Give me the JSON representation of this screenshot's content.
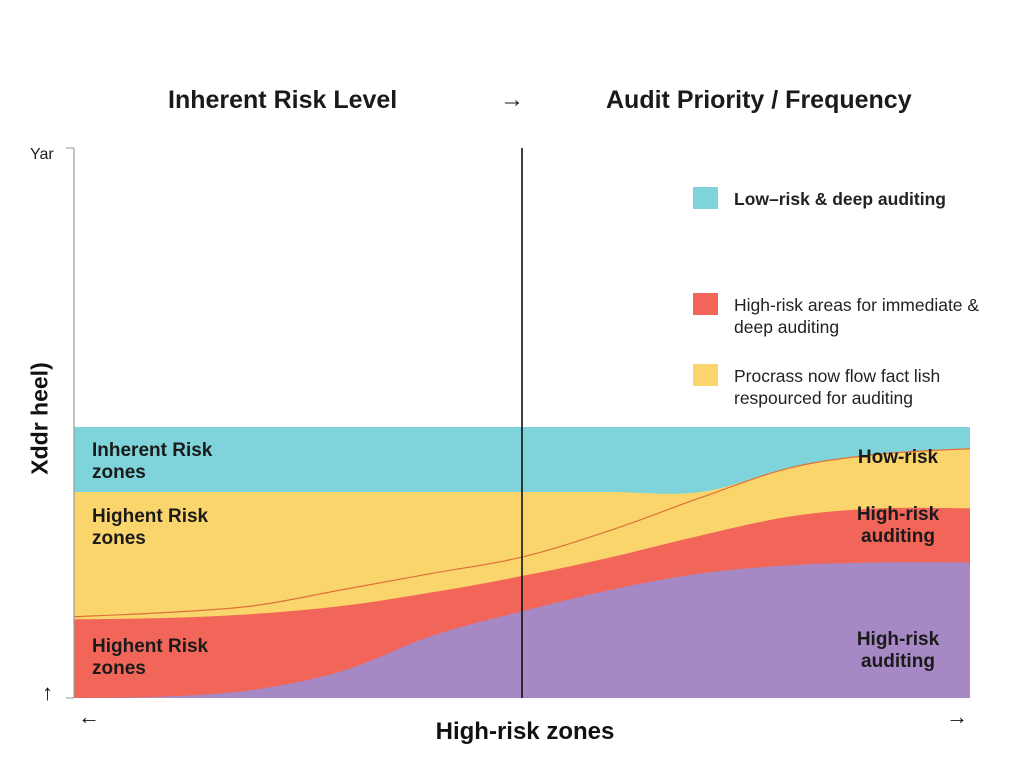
{
  "headings": {
    "left": "Inherent Risk Level",
    "arrow": "→",
    "right": "Audit Priority / Frequency"
  },
  "chart_data": {
    "type": "area",
    "title": "",
    "ylabel": "Xddr heel)",
    "y_top_label": "Yar",
    "xlabel": "High-risk zones",
    "xlim": [
      0,
      100
    ],
    "ylim": [
      0,
      100
    ],
    "axis_arrows": {
      "up": "↑",
      "left": "←",
      "right": "→"
    },
    "divider_x": 50,
    "x": [
      0,
      10,
      20,
      30,
      40,
      50,
      60,
      70,
      80,
      90,
      100
    ],
    "series": [
      {
        "key": "purple",
        "color": "#a689c4",
        "values": [
          0,
          0.5,
          3,
          10,
          23,
          32,
          40,
          46,
          49,
          50,
          50
        ]
      },
      {
        "key": "red",
        "color": "#f26659",
        "values": [
          29,
          29.5,
          31,
          34,
          39,
          45,
          52,
          60,
          67,
          70,
          70
        ]
      },
      {
        "key": "yellow",
        "color": "#fad56b",
        "values": [
          30,
          31.5,
          34,
          40,
          46,
          52,
          62,
          74,
          85,
          90,
          92
        ]
      },
      {
        "key": "teal",
        "color": "#7fd3da",
        "values": [
          100,
          100,
          100,
          100,
          100,
          100,
          100,
          100,
          100,
          100,
          100
        ]
      }
    ],
    "yellow_band_top": 76,
    "legend": [
      {
        "label": "Low–risk & deep auditing",
        "color": "#7fd3da"
      },
      {
        "label": "High-risk areas for immediate & deep auditing",
        "color": "#f26659"
      },
      {
        "label": "Procrass now flow fact lish respourced for auditing",
        "color": "#fad56b"
      }
    ],
    "zone_labels": {
      "teal": "Inherent Risk zones",
      "yellow": "Highent Risk zones",
      "red": "Highent Risk zones"
    },
    "area_labels": {
      "yellow": "How-risk",
      "red": "High-risk auditing",
      "purple": "High-risk auditing"
    }
  }
}
